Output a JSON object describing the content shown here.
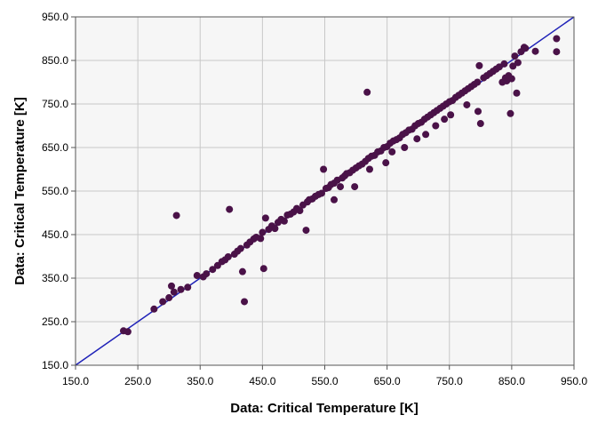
{
  "chart_data": {
    "type": "scatter",
    "xlabel": "Data: Critical Temperature [K]",
    "ylabel": "Data: Critical Temperature [K]",
    "xlim": [
      150,
      950
    ],
    "ylim": [
      150,
      950
    ],
    "x_ticks": [
      "150.0",
      "250.0",
      "350.0",
      "450.0",
      "550.0",
      "650.0",
      "750.0",
      "850.0",
      "950.0"
    ],
    "y_ticks": [
      "150.0",
      "250.0",
      "350.0",
      "450.0",
      "550.0",
      "650.0",
      "750.0",
      "850.0",
      "950.0"
    ],
    "grid": true,
    "reference_line": {
      "kind": "parity",
      "from": [
        150,
        150
      ],
      "to": [
        950,
        950
      ]
    },
    "colors": {
      "points": "#4a1248",
      "line": "#1f22b8",
      "plot_bg": "#f6f6f6",
      "grid": "#c8c8c8"
    },
    "points": [
      [
        227,
        229
      ],
      [
        234,
        227
      ],
      [
        276,
        279
      ],
      [
        290,
        296
      ],
      [
        300,
        305
      ],
      [
        304,
        332
      ],
      [
        308,
        318
      ],
      [
        312,
        494
      ],
      [
        319,
        324
      ],
      [
        330,
        329
      ],
      [
        345,
        356
      ],
      [
        355,
        353
      ],
      [
        360,
        360
      ],
      [
        370,
        370
      ],
      [
        378,
        379
      ],
      [
        385,
        388
      ],
      [
        390,
        392
      ],
      [
        395,
        399
      ],
      [
        397,
        508
      ],
      [
        405,
        405
      ],
      [
        410,
        412
      ],
      [
        415,
        418
      ],
      [
        418,
        365
      ],
      [
        421,
        296
      ],
      [
        425,
        426
      ],
      [
        430,
        433
      ],
      [
        436,
        440
      ],
      [
        440,
        444
      ],
      [
        447,
        441
      ],
      [
        450,
        455
      ],
      [
        452,
        372
      ],
      [
        455,
        488
      ],
      [
        460,
        462
      ],
      [
        465,
        470
      ],
      [
        470,
        464
      ],
      [
        475,
        478
      ],
      [
        480,
        485
      ],
      [
        485,
        481
      ],
      [
        490,
        495
      ],
      [
        495,
        497
      ],
      [
        500,
        502
      ],
      [
        505,
        510
      ],
      [
        510,
        505
      ],
      [
        515,
        518
      ],
      [
        520,
        460
      ],
      [
        522,
        525
      ],
      [
        525,
        530
      ],
      [
        530,
        532
      ],
      [
        535,
        538
      ],
      [
        540,
        542
      ],
      [
        545,
        545
      ],
      [
        548,
        600
      ],
      [
        552,
        556
      ],
      [
        556,
        558
      ],
      [
        560,
        565
      ],
      [
        565,
        530
      ],
      [
        565,
        568
      ],
      [
        570,
        575
      ],
      [
        575,
        560
      ],
      [
        578,
        580
      ],
      [
        582,
        585
      ],
      [
        585,
        590
      ],
      [
        590,
        592
      ],
      [
        595,
        598
      ],
      [
        598,
        560
      ],
      [
        600,
        603
      ],
      [
        605,
        608
      ],
      [
        610,
        612
      ],
      [
        615,
        618
      ],
      [
        618,
        777
      ],
      [
        620,
        625
      ],
      [
        622,
        600
      ],
      [
        625,
        630
      ],
      [
        630,
        632
      ],
      [
        635,
        640
      ],
      [
        640,
        642
      ],
      [
        645,
        650
      ],
      [
        648,
        615
      ],
      [
        650,
        652
      ],
      [
        655,
        660
      ],
      [
        658,
        640
      ],
      [
        660,
        665
      ],
      [
        665,
        668
      ],
      [
        670,
        672
      ],
      [
        675,
        680
      ],
      [
        678,
        650
      ],
      [
        680,
        684
      ],
      [
        685,
        690
      ],
      [
        690,
        692
      ],
      [
        695,
        700
      ],
      [
        698,
        670
      ],
      [
        700,
        705
      ],
      [
        705,
        708
      ],
      [
        710,
        715
      ],
      [
        712,
        680
      ],
      [
        715,
        720
      ],
      [
        720,
        725
      ],
      [
        725,
        730
      ],
      [
        728,
        700
      ],
      [
        730,
        735
      ],
      [
        735,
        740
      ],
      [
        740,
        745
      ],
      [
        742,
        715
      ],
      [
        745,
        750
      ],
      [
        750,
        755
      ],
      [
        752,
        725
      ],
      [
        755,
        758
      ],
      [
        760,
        765
      ],
      [
        765,
        770
      ],
      [
        770,
        775
      ],
      [
        775,
        780
      ],
      [
        778,
        748
      ],
      [
        780,
        785
      ],
      [
        785,
        790
      ],
      [
        790,
        795
      ],
      [
        795,
        800
      ],
      [
        796,
        733
      ],
      [
        798,
        838
      ],
      [
        800,
        705
      ],
      [
        805,
        810
      ],
      [
        810,
        815
      ],
      [
        815,
        820
      ],
      [
        820,
        825
      ],
      [
        825,
        830
      ],
      [
        830,
        835
      ],
      [
        835,
        800
      ],
      [
        838,
        842
      ],
      [
        840,
        810
      ],
      [
        842,
        803
      ],
      [
        845,
        815
      ],
      [
        848,
        728
      ],
      [
        850,
        808
      ],
      [
        852,
        837
      ],
      [
        855,
        860
      ],
      [
        858,
        775
      ],
      [
        860,
        845
      ],
      [
        865,
        870
      ],
      [
        870,
        880
      ],
      [
        872,
        878
      ],
      [
        888,
        871
      ],
      [
        922,
        870
      ],
      [
        922,
        900
      ]
    ]
  }
}
